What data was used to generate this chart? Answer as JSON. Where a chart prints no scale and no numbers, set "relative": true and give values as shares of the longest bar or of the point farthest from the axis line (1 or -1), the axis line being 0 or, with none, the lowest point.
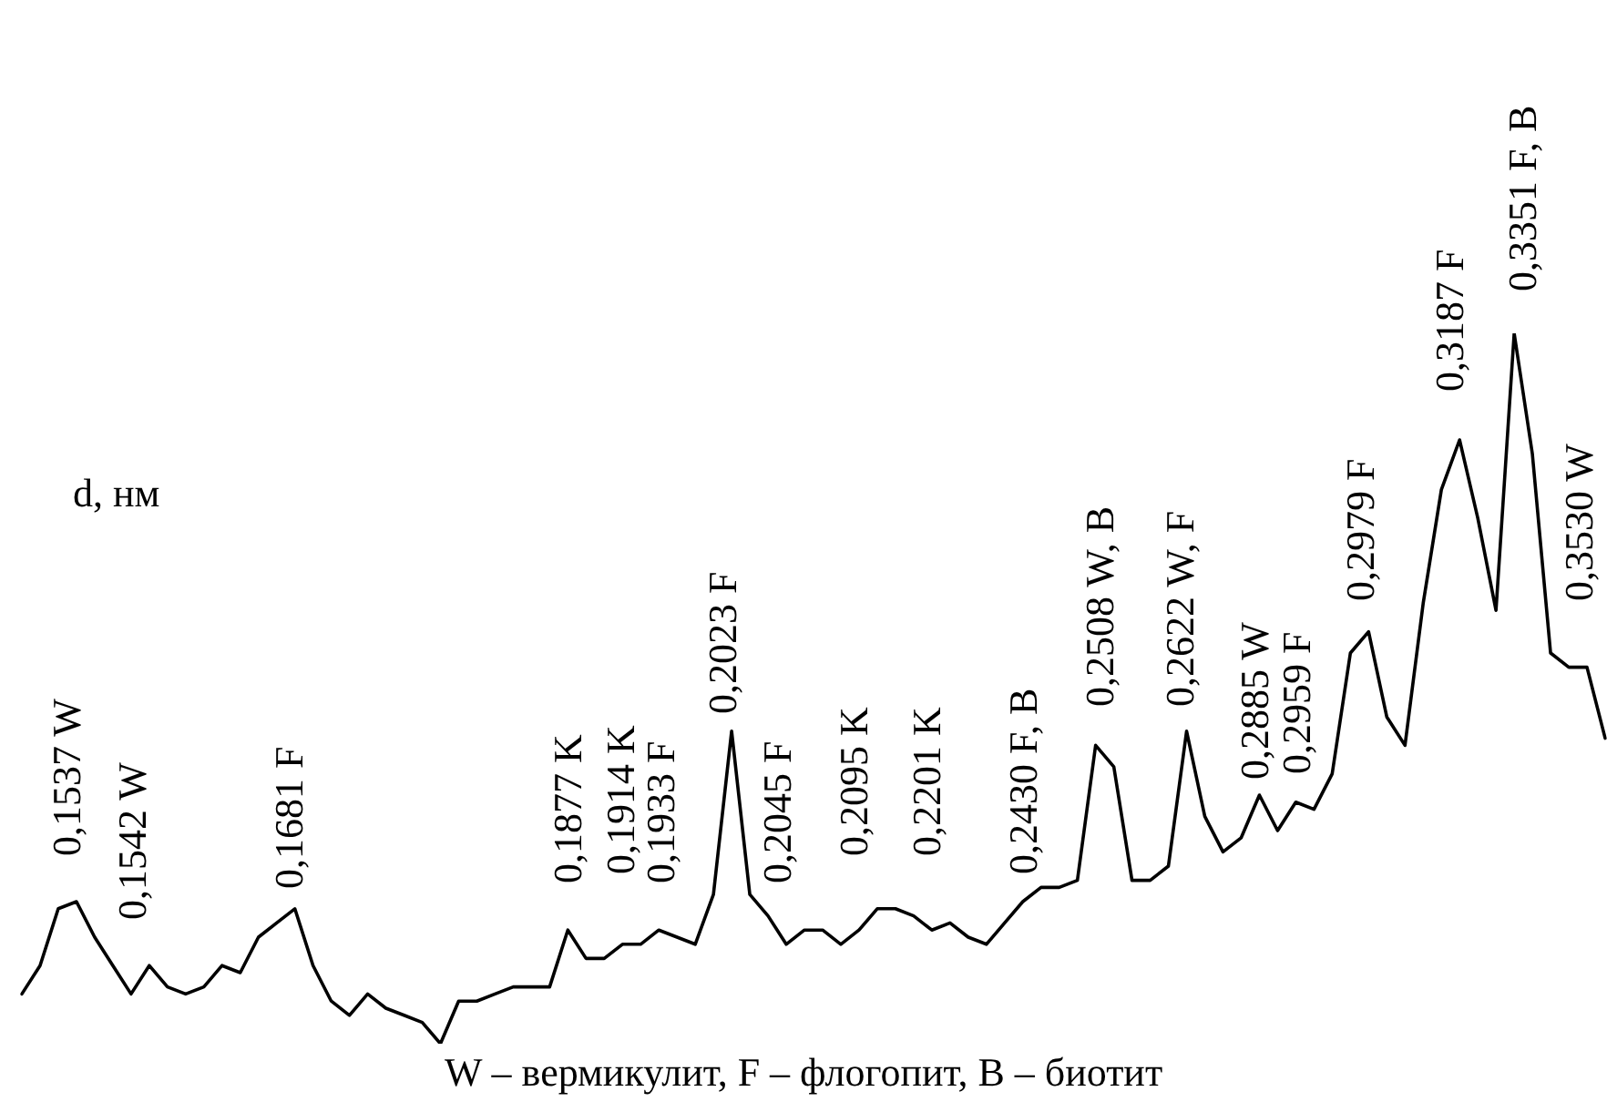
{
  "chart_data": {
    "type": "line",
    "relative": true,
    "legend": false,
    "marker": "none",
    "line_style": "solid",
    "categories": [
      null,
      null,
      null,
      null,
      null,
      null,
      null,
      null,
      null,
      null,
      null,
      null,
      null,
      null,
      null,
      null,
      null,
      null,
      null,
      null,
      null,
      null,
      null,
      null,
      null,
      null,
      null,
      null,
      null,
      null,
      null,
      null,
      null,
      null,
      null,
      null,
      null,
      null,
      null,
      null,
      null,
      null,
      null,
      null,
      null,
      null,
      null,
      null,
      null,
      null,
      null,
      null,
      null,
      null,
      null,
      null,
      null,
      null,
      null,
      null,
      null,
      null,
      null,
      null,
      null,
      null,
      null,
      null,
      null,
      null,
      null,
      null,
      null,
      null,
      null,
      null,
      null,
      null,
      null,
      null,
      null,
      null,
      null,
      null,
      null,
      null,
      null,
      null
    ],
    "series": [
      {
        "color": "#000000",
        "values": [
          0.07,
          0.11,
          0.19,
          0.2,
          0.15,
          0.11,
          0.07,
          0.11,
          0.08,
          0.07,
          0.08,
          0.11,
          0.1,
          0.15,
          0.17,
          0.19,
          0.11,
          0.06,
          0.04,
          0.07,
          0.05,
          0.04,
          0.03,
          0,
          0.06,
          0.06,
          0.07,
          0.08,
          0.08,
          0.08,
          0.16,
          0.12,
          0.12,
          0.14,
          0.14,
          0.16,
          0.15,
          0.14,
          0.21,
          0.44,
          0.21,
          0.18,
          0.14,
          0.16,
          0.16,
          0.14,
          0.16,
          0.19,
          0.19,
          0.18,
          0.16,
          0.17,
          0.15,
          0.14,
          0.17,
          0.2,
          0.22,
          0.22,
          0.23,
          0.42,
          0.39,
          0.23,
          0.23,
          0.25,
          0.44,
          0.32,
          0.27,
          0.29,
          0.35,
          0.3,
          0.34,
          0.33,
          0.38,
          0.55,
          0.58,
          0.46,
          0.42,
          0.62,
          0.78,
          0.85,
          0.74,
          0.61,
          1,
          0.83,
          0.55,
          0.53,
          0.53,
          0.43
        ]
      }
    ],
    "annotations": [
      "0,1537 W",
      "0,1542 W",
      "0,1681 F",
      "0,1877 K",
      "0,1914 K",
      "0,1933 F",
      "0,2023 F",
      "0,2045 F",
      "0,2095 K",
      "0,2201 K",
      "0,2430 F, B",
      "0,2508 W, B",
      "0,2622 W, F",
      "0,2885 W",
      "0,2959 F",
      "0,2979 F",
      "0,3187 F",
      "0,3351 F, B",
      "0,3530 W",
      "d, нм",
      "W – вермикулит, F – флогопит, B – биотит"
    ]
  }
}
